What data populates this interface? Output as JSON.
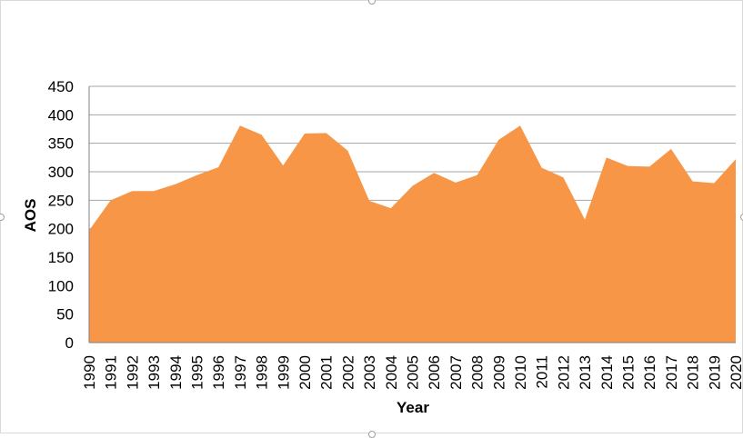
{
  "chart_data": {
    "type": "area",
    "title": "",
    "xlabel": "Year",
    "ylabel": "AOS",
    "ylim": [
      0,
      450
    ],
    "y_ticks": [
      0,
      50,
      100,
      150,
      200,
      250,
      300,
      350,
      400,
      450
    ],
    "grid": "horizontal",
    "legend": "none",
    "x": [
      "1990",
      "1991",
      "1992",
      "1993",
      "1994",
      "1995",
      "1996",
      "1997",
      "1998",
      "1999",
      "2000",
      "2001",
      "2002",
      "2003",
      "2004",
      "2005",
      "2006",
      "2007",
      "2008",
      "2009",
      "2010",
      "2011",
      "2012",
      "2013",
      "2014",
      "2015",
      "2016",
      "2017",
      "2018",
      "2019",
      "2020"
    ],
    "series": [
      {
        "color": "#F79646",
        "values": [
          197,
          250,
          266,
          266,
          278,
          294,
          308,
          381,
          365,
          311,
          367,
          368,
          337,
          249,
          236,
          275,
          298,
          281,
          294,
          356,
          381,
          307,
          290,
          216,
          325,
          310,
          309,
          340,
          283,
          280,
          322
        ]
      }
    ]
  },
  "colors": {
    "area_fill": "#F79646",
    "gridline": "#a6a6a6",
    "axis_line": "#808080"
  }
}
